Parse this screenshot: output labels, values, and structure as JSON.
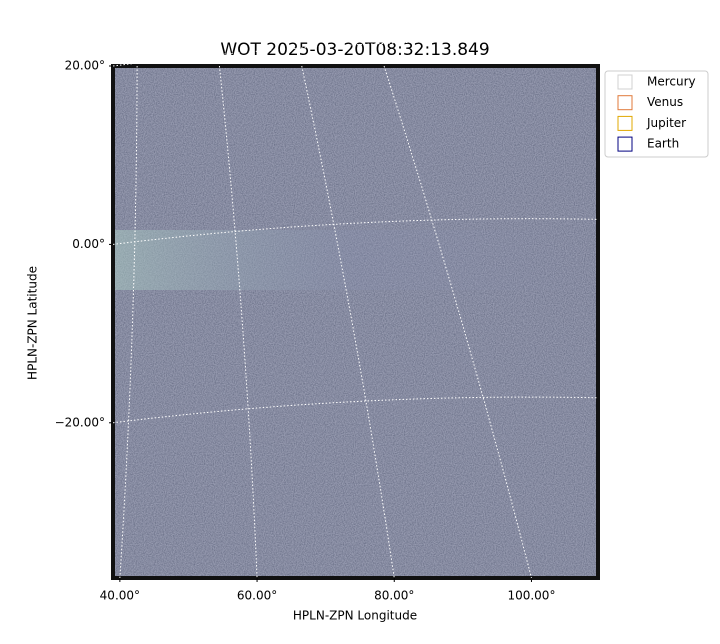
{
  "chart_data": {
    "type": "image",
    "title": "WOT 2025-03-20T08:32:13.849",
    "x_label": "HPLN-ZPN Longitude",
    "y_label": "HPLN-ZPN Latitude",
    "xlim": [
      39.0,
      109.7
    ],
    "ylim": [
      -37.4,
      20
    ],
    "xticks": [
      {
        "value": 40,
        "label": "40.00°"
      },
      {
        "value": 60,
        "label": "60.00°"
      },
      {
        "value": 80,
        "label": "80.00°"
      },
      {
        "value": 100,
        "label": "100.00°"
      }
    ],
    "yticks": [
      {
        "value": 20,
        "label": "20.00°"
      },
      {
        "value": 0,
        "label": "0.00°"
      },
      {
        "value": -20,
        "label": "−20.00°"
      }
    ],
    "grid": true,
    "legend_position": "outside-upper-right",
    "legend": [
      {
        "name": "Mercury",
        "color": "#d0d0d0"
      },
      {
        "name": "Venus",
        "color": "#e07a3a"
      },
      {
        "name": "Jupiter",
        "color": "#e0a800"
      },
      {
        "name": "Earth",
        "color": "#000080"
      }
    ]
  }
}
